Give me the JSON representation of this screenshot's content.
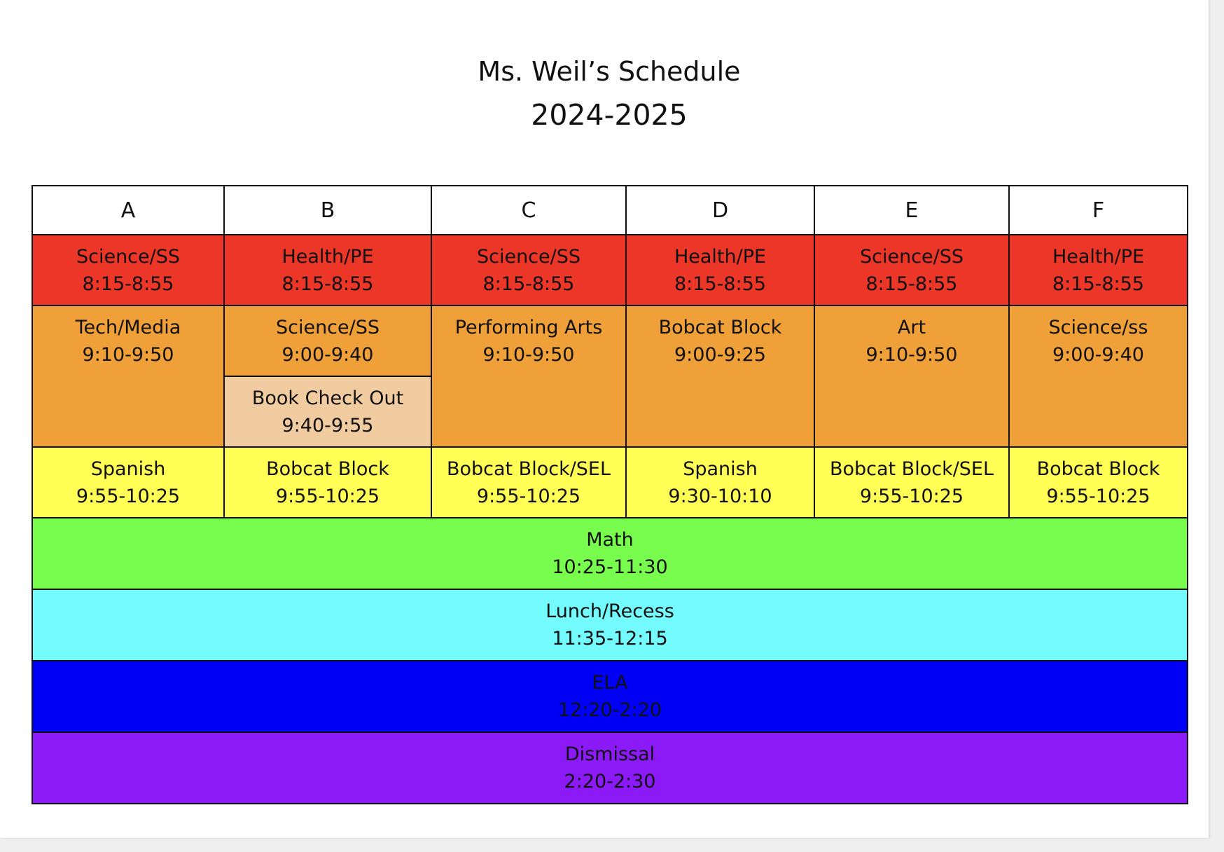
{
  "header": {
    "title": "Ms. Weil’s Schedule",
    "year": "2024-2025"
  },
  "colors": {
    "row1": "#ec3627",
    "row2": "#f0a039",
    "book_check_out": "#f2cca1",
    "row3": "#ffff55",
    "math": "#78fd4e",
    "lunch": "#73fbfd",
    "ela": "#0000f5",
    "dismissal": "#8b1af6"
  },
  "days": [
    "A",
    "B",
    "C",
    "D",
    "E",
    "F"
  ],
  "row1": [
    {
      "subject": "Science/SS",
      "time": "8:15-8:55"
    },
    {
      "subject": "Health/PE",
      "time": "8:15-8:55"
    },
    {
      "subject": "Science/SS",
      "time": "8:15-8:55"
    },
    {
      "subject": "Health/PE",
      "time": "8:15-8:55"
    },
    {
      "subject": "Science/SS",
      "time": "8:15-8:55"
    },
    {
      "subject": "Health/PE",
      "time": "8:15-8:55"
    }
  ],
  "row2": [
    {
      "subject": "Tech/Media",
      "time": "9:10-9:50"
    },
    {
      "subject": "Science/SS",
      "time": "9:00-9:40"
    },
    {
      "subject": "Performing Arts",
      "time": "9:10-9:50"
    },
    {
      "subject": "Bobcat Block",
      "time": "9:00-9:25"
    },
    {
      "subject": "Art",
      "time": "9:10-9:50"
    },
    {
      "subject": "Science/ss",
      "time": "9:00-9:40"
    }
  ],
  "book_check_out": {
    "subject": "Book Check Out",
    "time": "9:40-9:55"
  },
  "row3": [
    {
      "subject": "Spanish",
      "time": "9:55-10:25"
    },
    {
      "subject": "Bobcat Block",
      "time": "9:55-10:25"
    },
    {
      "subject": "Bobcat Block/SEL",
      "time": "9:55-10:25"
    },
    {
      "subject": "Spanish",
      "time": "9:30-10:10"
    },
    {
      "subject": "Bobcat Block/SEL",
      "time": "9:55-10:25"
    },
    {
      "subject": "Bobcat Block",
      "time": "9:55-10:25"
    }
  ],
  "math": {
    "subject": "Math",
    "time": "10:25-11:30"
  },
  "lunch": {
    "subject": "Lunch/Recess",
    "time": "11:35-12:15"
  },
  "ela": {
    "subject": "ELA",
    "time": "12:20-2:20"
  },
  "dismissal": {
    "subject": "Dismissal",
    "time": "2:20-2:30"
  }
}
